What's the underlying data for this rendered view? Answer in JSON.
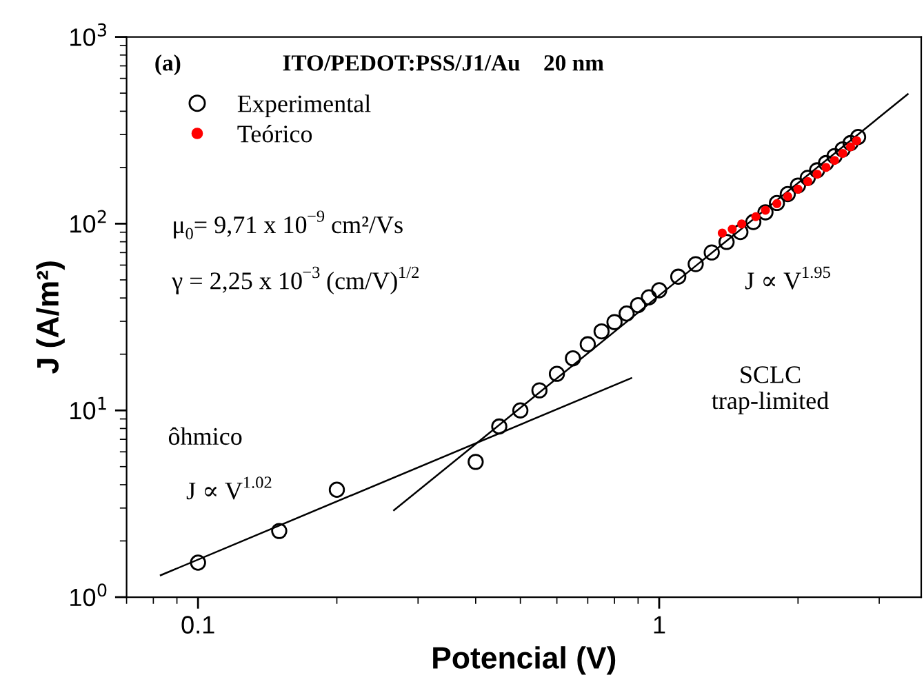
{
  "chart_data": {
    "type": "scatter",
    "xlabel": "Potencial (V)",
    "ylabel": "J (A/m²)",
    "log": "xy",
    "xlim": [
      0.07,
      3.7
    ],
    "xticks": [
      0.1,
      1
    ],
    "ylim": [
      1,
      1000
    ],
    "yticks": [
      {
        "value": 1,
        "label": "10$^{0}$"
      },
      {
        "value": 10,
        "label": "10$^{1}$"
      },
      {
        "value": 100,
        "label": "10$^{2}$"
      },
      {
        "value": 1000,
        "label": "10$^{3}$"
      }
    ],
    "grid": false,
    "legend": "top left",
    "series": [
      {
        "name": "Experimental",
        "marker": "circle",
        "color": "#000000",
        "x": [
          0.1,
          0.15,
          0.2,
          0.4,
          0.45,
          0.5,
          0.55,
          0.6,
          0.65,
          0.7,
          0.75,
          0.8,
          0.85,
          0.9,
          0.95,
          1.0,
          1.1,
          1.2,
          1.3,
          1.4,
          1.5,
          1.6,
          1.7,
          1.8,
          1.9,
          2.0,
          2.1,
          2.2,
          2.3,
          2.4,
          2.5,
          2.6,
          2.7
        ],
        "values": [
          1.53,
          2.26,
          3.76,
          5.3,
          8.2,
          10,
          12.8,
          15.7,
          19.0,
          22.6,
          26.5,
          29.7,
          33.0,
          36.6,
          40.3,
          44.0,
          52.0,
          60.7,
          70.1,
          79.8,
          90.2,
          102,
          115,
          129,
          144,
          160,
          176,
          193,
          211,
          230,
          250,
          270,
          291
        ]
      },
      {
        "name": "Teórico",
        "marker": "circle",
        "color": "#ff0000",
        "x": [
          1.37,
          1.44,
          1.51,
          1.62,
          1.7,
          1.8,
          1.9,
          2.0,
          2.1,
          2.2,
          2.3,
          2.4,
          2.5,
          2.6,
          2.68
        ],
        "values": [
          89,
          93.5,
          99.6,
          109,
          118,
          128,
          140,
          153,
          168,
          184,
          200,
          218,
          238,
          258,
          278
        ]
      },
      {
        "type": "line",
        "color": "#000000",
        "x": [
          0.083,
          0.87
        ],
        "values": [
          1.31,
          14.9
        ]
      },
      {
        "type": "line",
        "color": "#000000",
        "x": [
          0.266,
          3.46
        ],
        "values": [
          2.92,
          494
        ]
      }
    ],
    "annotations": [
      "(a)",
      "ITO/PEDOT:PSS/J1/Au    20 nm",
      "μ$_{0}$= 9,71 x 10$^{−9}$ cm²/Vs",
      "γ = 2,25 x 10$^{−3}$ (cm/V)$^{1/2}$",
      "J ∝ V$^{1.95}$",
      "SCLC\ntrap-limited",
      "ôhmico",
      "J ∝ V$^{1.02}$"
    ]
  }
}
